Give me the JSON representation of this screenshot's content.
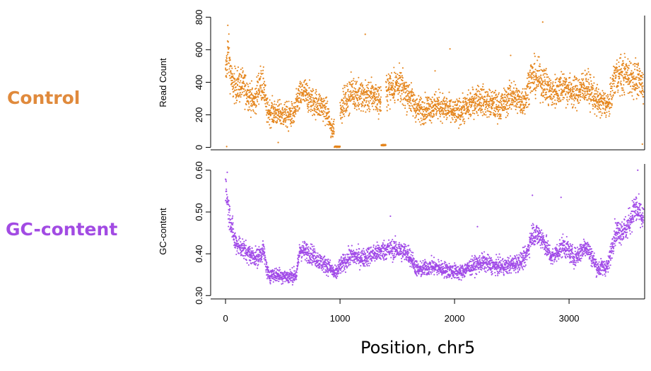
{
  "panel_labels": {
    "control": {
      "text": "Control",
      "color": "#E08A3C"
    },
    "gc": {
      "text": "GC-content",
      "color": "#A24BE3"
    }
  },
  "x_title": "Position, chr5",
  "chart_data": [
    {
      "type": "scatter",
      "ylabel": "Read Count",
      "color": "#E5861E",
      "xlim": [
        -130,
        3660
      ],
      "ylim": [
        -15,
        810
      ],
      "yticks": [
        0,
        200,
        400,
        600,
        800
      ],
      "xticks": [],
      "x_range": [
        0,
        3650
      ],
      "n_points": 3600,
      "level_profile": [
        [
          0,
          430
        ],
        [
          20,
          600
        ],
        [
          60,
          380
        ],
        [
          150,
          380
        ],
        [
          200,
          330
        ],
        [
          250,
          270
        ],
        [
          300,
          400
        ],
        [
          340,
          360
        ],
        [
          360,
          220
        ],
        [
          420,
          215
        ],
        [
          500,
          200
        ],
        [
          600,
          200
        ],
        [
          630,
          290
        ],
        [
          680,
          340
        ],
        [
          760,
          280
        ],
        [
          850,
          250
        ],
        [
          900,
          200
        ],
        [
          920,
          100
        ],
        [
          960,
          130
        ],
        [
          990,
          240
        ],
        [
          1050,
          280
        ],
        [
          1100,
          340
        ],
        [
          1200,
          310
        ],
        [
          1300,
          320
        ],
        [
          1350,
          280
        ],
        [
          1420,
          360
        ],
        [
          1500,
          390
        ],
        [
          1600,
          320
        ],
        [
          1680,
          230
        ],
        [
          1750,
          240
        ],
        [
          1850,
          260
        ],
        [
          1950,
          230
        ],
        [
          2000,
          210
        ],
        [
          2100,
          240
        ],
        [
          2200,
          300
        ],
        [
          2300,
          270
        ],
        [
          2400,
          250
        ],
        [
          2500,
          320
        ],
        [
          2580,
          280
        ],
        [
          2620,
          300
        ],
        [
          2660,
          430
        ],
        [
          2750,
          420
        ],
        [
          2850,
          330
        ],
        [
          2950,
          380
        ],
        [
          3050,
          330
        ],
        [
          3150,
          380
        ],
        [
          3250,
          280
        ],
        [
          3350,
          260
        ],
        [
          3400,
          440
        ],
        [
          3500,
          450
        ],
        [
          3580,
          420
        ],
        [
          3650,
          380
        ]
      ],
      "gaps": [
        [
          950,
          1000,
          0
        ],
        [
          1360,
          1400,
          10
        ]
      ],
      "outliers": [
        {
          "x": 20,
          "y": 750
        },
        {
          "x": 1220,
          "y": 695
        },
        {
          "x": 1960,
          "y": 605
        },
        {
          "x": 2770,
          "y": 770
        },
        {
          "x": 2490,
          "y": 565
        },
        {
          "x": 1830,
          "y": 470
        },
        {
          "x": 10,
          "y": 5
        },
        {
          "x": 3640,
          "y": 20
        },
        {
          "x": 460,
          "y": 30
        },
        {
          "x": 550,
          "y": 100
        }
      ]
    },
    {
      "type": "scatter",
      "ylabel": "GC-content",
      "color": "#A14BE8",
      "xlim": [
        -130,
        3660
      ],
      "ylim": [
        0.292,
        0.615
      ],
      "yticks": [
        0.3,
        0.4,
        0.5,
        0.6
      ],
      "ytick_labels": [
        "0.30",
        "0.40",
        "0.50",
        "0.60"
      ],
      "xticks": [
        0,
        1000,
        2000,
        3000
      ],
      "x_range": [
        0,
        3650
      ],
      "n_points": 3600,
      "level_profile": [
        [
          0,
          0.56
        ],
        [
          30,
          0.5
        ],
        [
          80,
          0.43
        ],
        [
          200,
          0.4
        ],
        [
          280,
          0.39
        ],
        [
          330,
          0.41
        ],
        [
          370,
          0.35
        ],
        [
          450,
          0.35
        ],
        [
          550,
          0.345
        ],
        [
          620,
          0.35
        ],
        [
          650,
          0.41
        ],
        [
          750,
          0.4
        ],
        [
          830,
          0.38
        ],
        [
          900,
          0.37
        ],
        [
          960,
          0.35
        ],
        [
          1000,
          0.37
        ],
        [
          1100,
          0.395
        ],
        [
          1200,
          0.39
        ],
        [
          1300,
          0.4
        ],
        [
          1400,
          0.41
        ],
        [
          1500,
          0.41
        ],
        [
          1600,
          0.4
        ],
        [
          1680,
          0.36
        ],
        [
          1800,
          0.37
        ],
        [
          1950,
          0.36
        ],
        [
          2050,
          0.355
        ],
        [
          2150,
          0.37
        ],
        [
          2250,
          0.38
        ],
        [
          2350,
          0.37
        ],
        [
          2450,
          0.37
        ],
        [
          2560,
          0.38
        ],
        [
          2620,
          0.39
        ],
        [
          2680,
          0.45
        ],
        [
          2760,
          0.44
        ],
        [
          2850,
          0.39
        ],
        [
          2950,
          0.42
        ],
        [
          3050,
          0.39
        ],
        [
          3150,
          0.42
        ],
        [
          3250,
          0.365
        ],
        [
          3340,
          0.37
        ],
        [
          3400,
          0.45
        ],
        [
          3500,
          0.46
        ],
        [
          3580,
          0.51
        ],
        [
          3650,
          0.48
        ]
      ],
      "outliers": [
        {
          "x": 3600,
          "y": 0.6
        },
        {
          "x": 15,
          "y": 0.595
        },
        {
          "x": 2680,
          "y": 0.54
        },
        {
          "x": 2930,
          "y": 0.535
        },
        {
          "x": 1440,
          "y": 0.49
        },
        {
          "x": 2200,
          "y": 0.465
        }
      ]
    }
  ]
}
